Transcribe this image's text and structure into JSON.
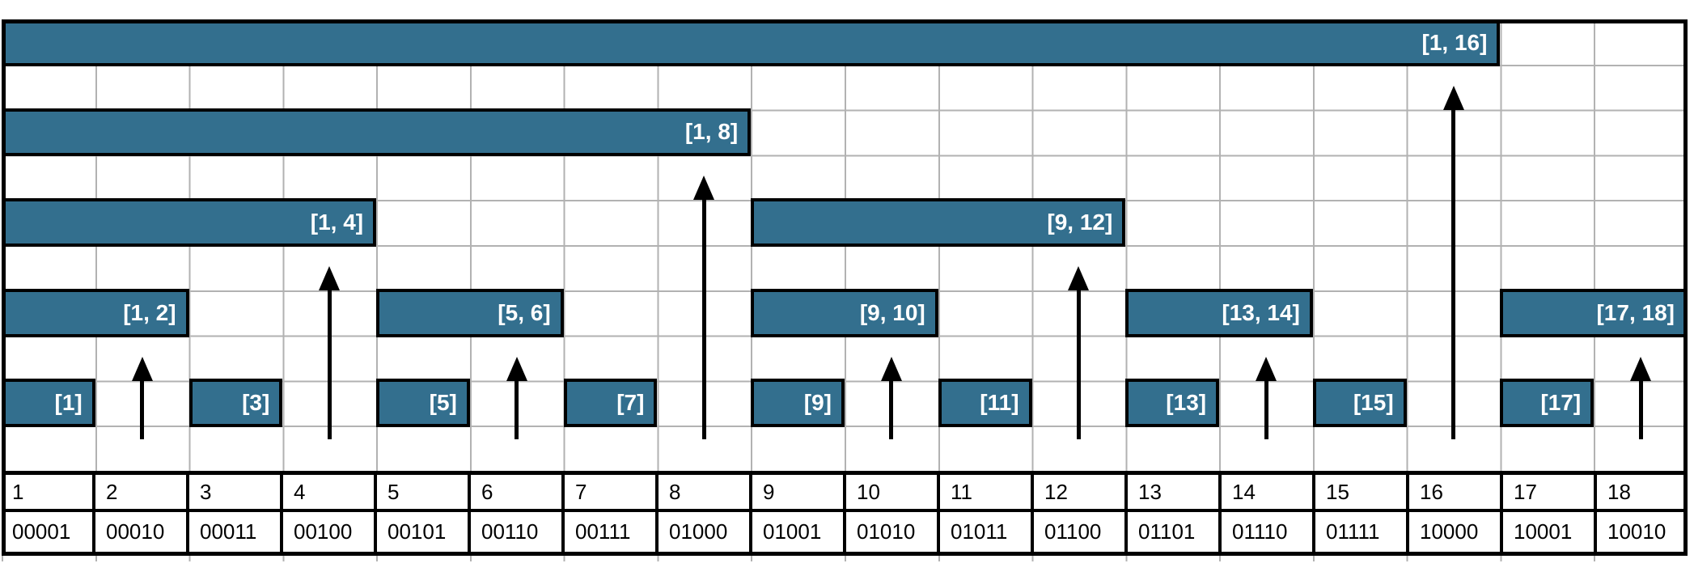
{
  "colors": {
    "bar_fill": "#336F8E",
    "bar_border": "#000000",
    "grid_line": "#b2b2b2",
    "table_border": "#000000",
    "bar_label_text": "#ffffff",
    "cell_text": "#000000",
    "arrow": "#000000"
  },
  "columns": [
    {
      "index": "1",
      "binary": "00001"
    },
    {
      "index": "2",
      "binary": "00010"
    },
    {
      "index": "3",
      "binary": "00011"
    },
    {
      "index": "4",
      "binary": "00100"
    },
    {
      "index": "5",
      "binary": "00101"
    },
    {
      "index": "6",
      "binary": "00110"
    },
    {
      "index": "7",
      "binary": "00111"
    },
    {
      "index": "8",
      "binary": "01000"
    },
    {
      "index": "9",
      "binary": "01001"
    },
    {
      "index": "10",
      "binary": "01010"
    },
    {
      "index": "11",
      "binary": "01011"
    },
    {
      "index": "12",
      "binary": "01100"
    },
    {
      "index": "13",
      "binary": "01101"
    },
    {
      "index": "14",
      "binary": "01110"
    },
    {
      "index": "15",
      "binary": "01111"
    },
    {
      "index": "16",
      "binary": "10000"
    },
    {
      "index": "17",
      "binary": "10001"
    },
    {
      "index": "18",
      "binary": "10010"
    }
  ],
  "bars": [
    {
      "label": "[1, 16]",
      "from": 1,
      "to": 16,
      "level": 0
    },
    {
      "label": "[1, 8]",
      "from": 1,
      "to": 8,
      "level": 1
    },
    {
      "label": "[1, 4]",
      "from": 1,
      "to": 4,
      "level": 2
    },
    {
      "label": "[9, 12]",
      "from": 9,
      "to": 12,
      "level": 2
    },
    {
      "label": "[1, 2]",
      "from": 1,
      "to": 2,
      "level": 3
    },
    {
      "label": "[5, 6]",
      "from": 5,
      "to": 6,
      "level": 3
    },
    {
      "label": "[9, 10]",
      "from": 9,
      "to": 10,
      "level": 3
    },
    {
      "label": "[13, 14]",
      "from": 13,
      "to": 14,
      "level": 3
    },
    {
      "label": "[17, 18]",
      "from": 17,
      "to": 18,
      "level": 3
    },
    {
      "label": "[1]",
      "from": 1,
      "to": 1,
      "level": 4
    },
    {
      "label": "[3]",
      "from": 3,
      "to": 3,
      "level": 4
    },
    {
      "label": "[5]",
      "from": 5,
      "to": 5,
      "level": 4
    },
    {
      "label": "[7]",
      "from": 7,
      "to": 7,
      "level": 4
    },
    {
      "label": "[9]",
      "from": 9,
      "to": 9,
      "level": 4
    },
    {
      "label": "[11]",
      "from": 11,
      "to": 11,
      "level": 4
    },
    {
      "label": "[13]",
      "from": 13,
      "to": 13,
      "level": 4
    },
    {
      "label": "[15]",
      "from": 15,
      "to": 15,
      "level": 4
    },
    {
      "label": "[17]",
      "from": 17,
      "to": 17,
      "level": 4
    }
  ],
  "arrows": [
    {
      "column": 2,
      "points_to_level": 3
    },
    {
      "column": 4,
      "points_to_level": 2
    },
    {
      "column": 6,
      "points_to_level": 3
    },
    {
      "column": 8,
      "points_to_level": 1
    },
    {
      "column": 10,
      "points_to_level": 3
    },
    {
      "column": 12,
      "points_to_level": 2
    },
    {
      "column": 14,
      "points_to_level": 3
    },
    {
      "column": 16,
      "points_to_level": 0
    },
    {
      "column": 18,
      "points_to_level": 3
    }
  ]
}
